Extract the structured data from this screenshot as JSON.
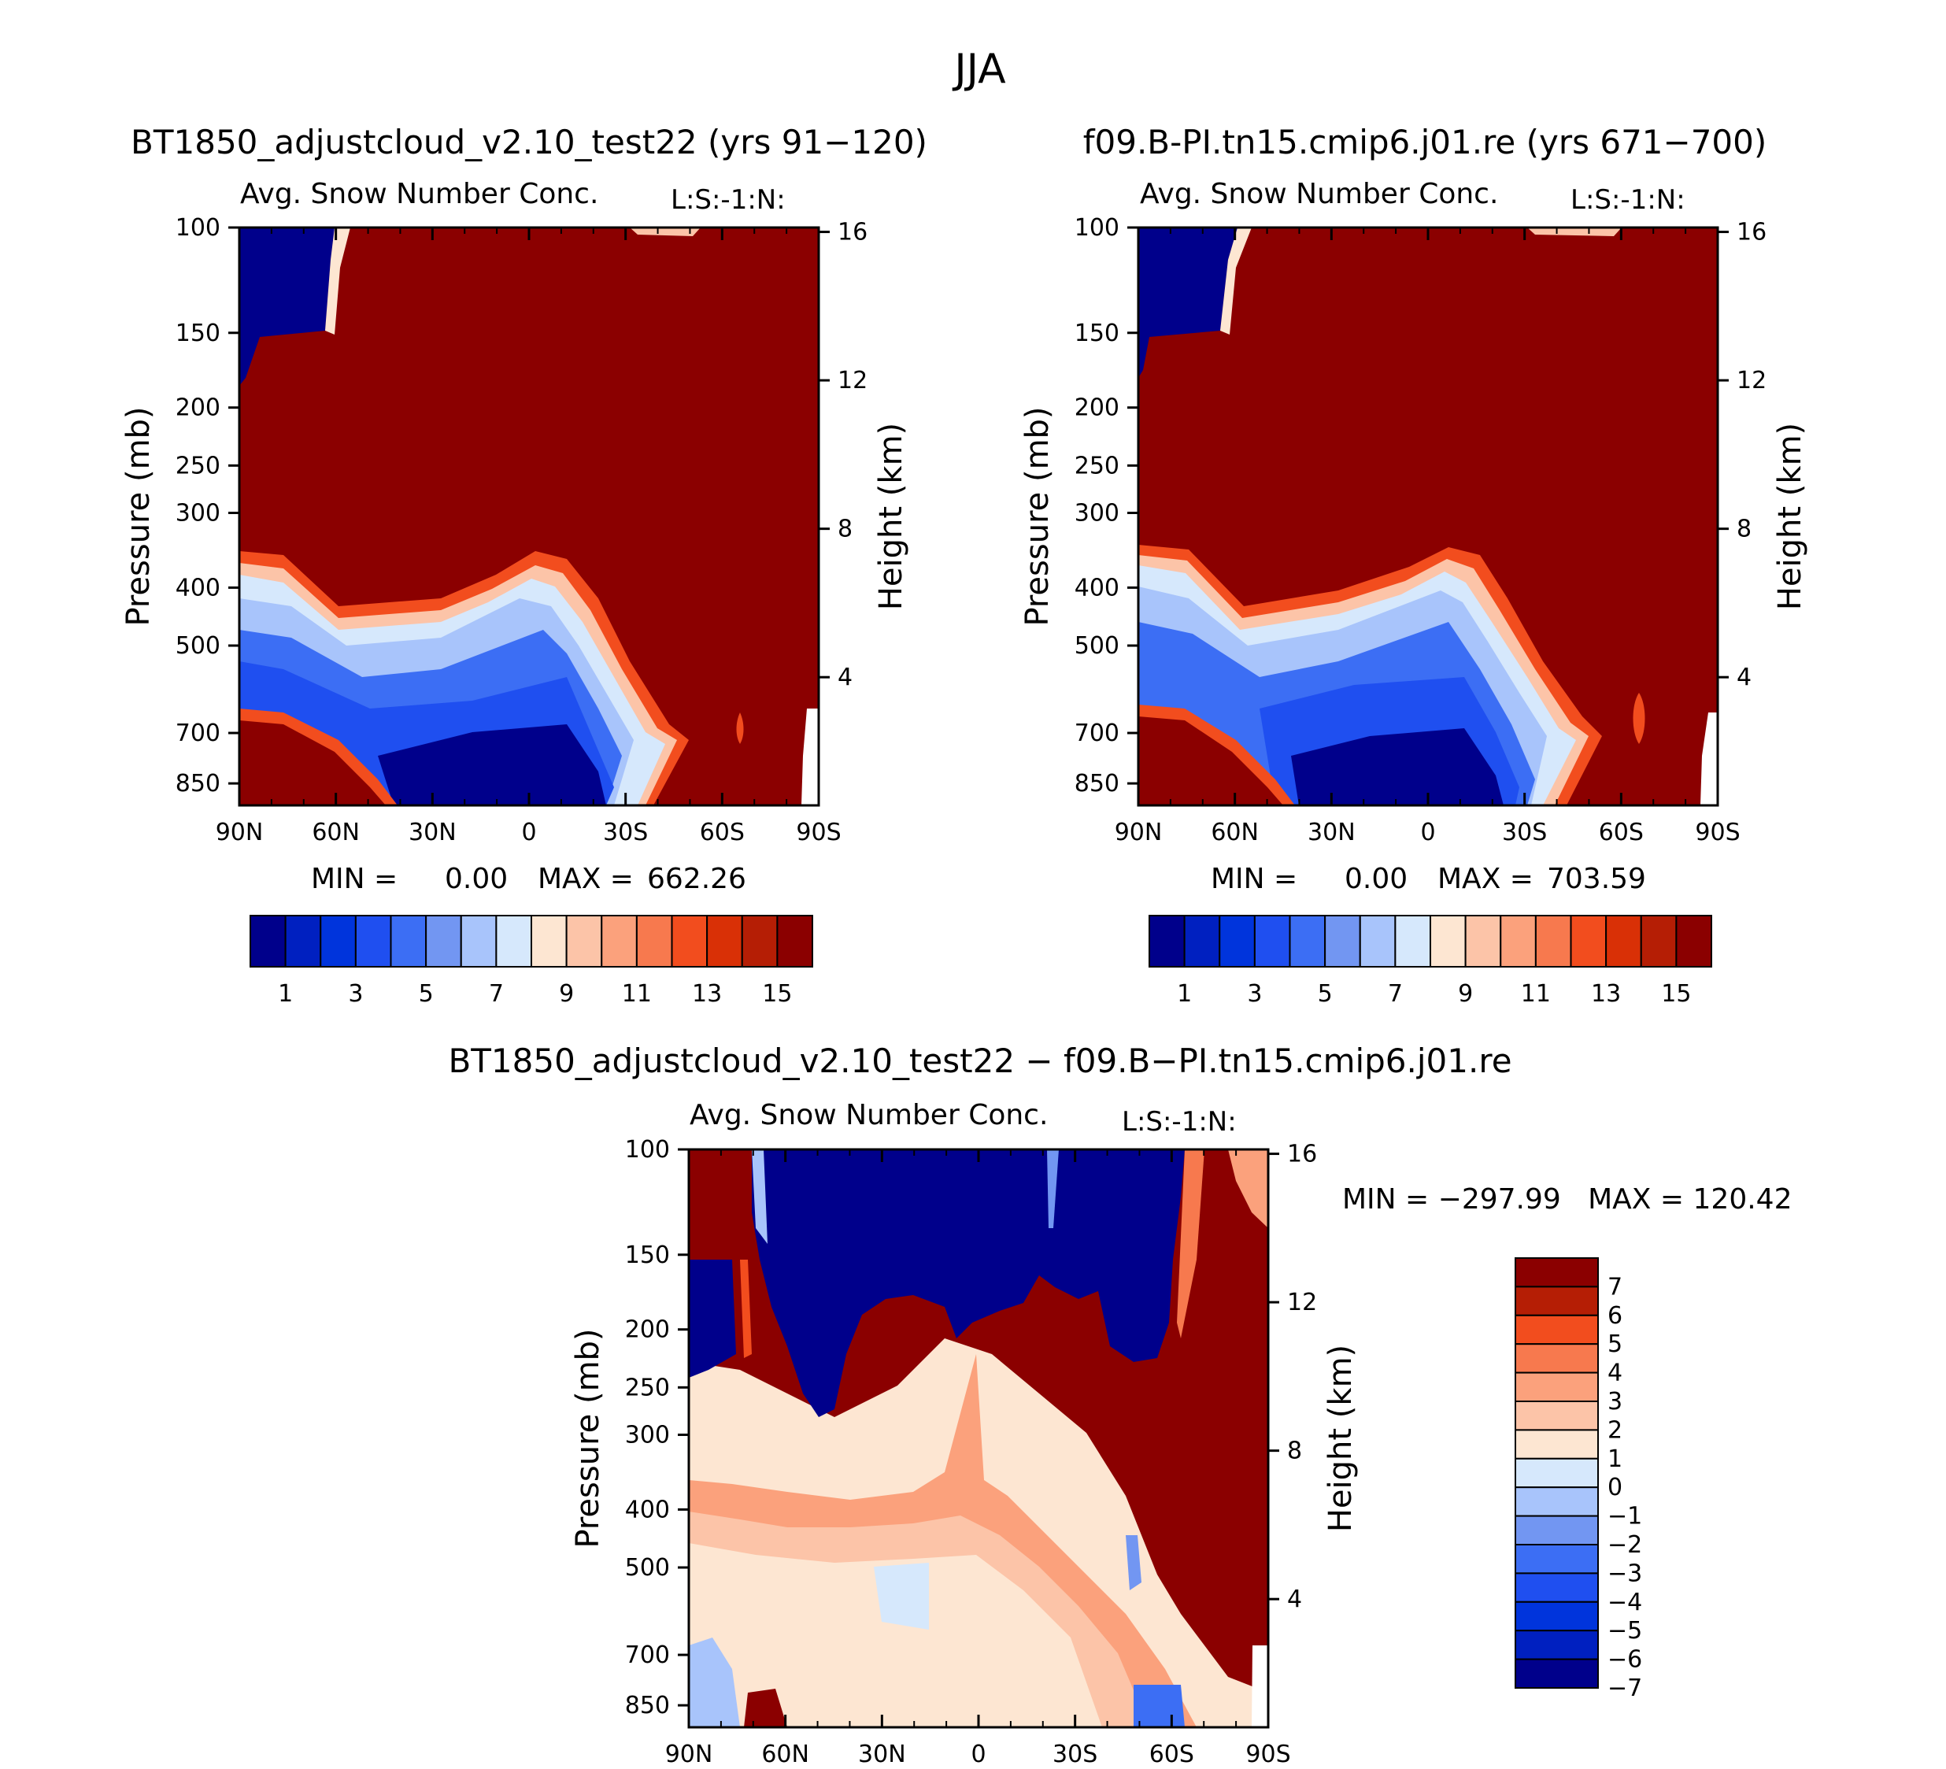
{
  "figure": {
    "season": "JJA",
    "variable": "Avg. Snow Number Conc.",
    "level_tag": "L:S:-1:N:",
    "pressure_label": "Pressure (mb)",
    "height_label": "Height (km)"
  },
  "panels": [
    {
      "id": "test",
      "case_title": "BT1850_adjustcloud_v2.10_test22 (yrs 91−120)",
      "min_label": "MIN =",
      "min_value": "0.00",
      "max_label": "MAX =",
      "max_value": "662.26"
    },
    {
      "id": "control",
      "case_title": "f09.B-PI.tn15.cmip6.j01.re (yrs 671−700)",
      "min_label": "MIN =",
      "min_value": "0.00",
      "max_label": "MAX =",
      "max_value": "703.59"
    },
    {
      "id": "diff",
      "case_title": "BT1850_adjustcloud_v2.10_test22 − f09.B−PI.tn15.cmip6.j01.re",
      "minmax_text": "MIN = −297.99   MAX = 120.42"
    }
  ],
  "colors": {
    "seq_palette": [
      "#00008b",
      "#0020c0",
      "#0034dc",
      "#1f4ff0",
      "#3c6ef4",
      "#7296f2",
      "#a8c4fb",
      "#d6e8fc",
      "#fde6d2",
      "#fcc4a8",
      "#fba17c",
      "#f7794e",
      "#f24d1e",
      "#d93006",
      "#b51e05",
      "#8b0000"
    ],
    "diff_palette": [
      "#8b0000",
      "#b51e05",
      "#f24d1e",
      "#f7794e",
      "#fba17c",
      "#fcc4a8",
      "#fde6d2",
      "#d6e8fc",
      "#a8c4fb",
      "#7296f2",
      "#3c6ef4",
      "#1f4ff0",
      "#0034dc",
      "#0020c0",
      "#00008b"
    ]
  },
  "chart_data": [
    {
      "type": "heatmap",
      "name": "test-panel",
      "title": "Avg. Snow Number Conc.",
      "x_ticks": [
        "90N",
        "60N",
        "30N",
        "0",
        "30S",
        "60S",
        "90S"
      ],
      "x_values": [
        90,
        60,
        30,
        0,
        -30,
        -60,
        -90
      ],
      "xlim": [
        90,
        -90
      ],
      "y_ticks": [
        "100",
        "150",
        "200",
        "250",
        "300",
        "400",
        "500",
        "700",
        "850"
      ],
      "y_values": [
        100,
        150,
        200,
        250,
        300,
        400,
        500,
        700,
        850
      ],
      "ylim": [
        100,
        925
      ],
      "y_scale": "log",
      "y2_ticks": [
        "16",
        "12",
        "8",
        "4"
      ],
      "y2_values": [
        16,
        12,
        8,
        4
      ],
      "colorbar_labels": [
        "1",
        "3",
        "5",
        "7",
        "9",
        "11",
        "13",
        "15"
      ],
      "colorbar_levels": 16,
      "min": 0.0,
      "max": 662.26
    },
    {
      "type": "heatmap",
      "name": "control-panel",
      "title": "Avg. Snow Number Conc.",
      "x_ticks": [
        "90N",
        "60N",
        "30N",
        "0",
        "30S",
        "60S",
        "90S"
      ],
      "x_values": [
        90,
        60,
        30,
        0,
        -30,
        -60,
        -90
      ],
      "xlim": [
        90,
        -90
      ],
      "y_ticks": [
        "100",
        "150",
        "200",
        "250",
        "300",
        "400",
        "500",
        "700",
        "850"
      ],
      "y_values": [
        100,
        150,
        200,
        250,
        300,
        400,
        500,
        700,
        850
      ],
      "ylim": [
        100,
        925
      ],
      "y_scale": "log",
      "y2_ticks": [
        "16",
        "12",
        "8",
        "4"
      ],
      "y2_values": [
        16,
        12,
        8,
        4
      ],
      "colorbar_labels": [
        "1",
        "3",
        "5",
        "7",
        "9",
        "11",
        "13",
        "15"
      ],
      "colorbar_levels": 16,
      "min": 0.0,
      "max": 703.59
    },
    {
      "type": "heatmap",
      "name": "difference-panel",
      "title": "Avg. Snow Number Conc.",
      "x_ticks": [
        "90N",
        "60N",
        "30N",
        "0",
        "30S",
        "60S",
        "90S"
      ],
      "x_values": [
        90,
        60,
        30,
        0,
        -30,
        -60,
        -90
      ],
      "xlim": [
        90,
        -90
      ],
      "y_ticks": [
        "100",
        "150",
        "200",
        "250",
        "300",
        "400",
        "500",
        "700",
        "850"
      ],
      "y_values": [
        100,
        150,
        200,
        250,
        300,
        400,
        500,
        700,
        850
      ],
      "ylim": [
        100,
        925
      ],
      "y_scale": "log",
      "y2_ticks": [
        "16",
        "12",
        "8",
        "4"
      ],
      "y2_values": [
        16,
        12,
        8,
        4
      ],
      "colorbar_labels": [
        "7",
        "6",
        "5",
        "4",
        "3",
        "2",
        "1",
        "0",
        "−1",
        "−2",
        "−3",
        "−4",
        "−5",
        "−6",
        "−7"
      ],
      "colorbar_levels": 15,
      "min": -297.99,
      "max": 120.42
    }
  ]
}
